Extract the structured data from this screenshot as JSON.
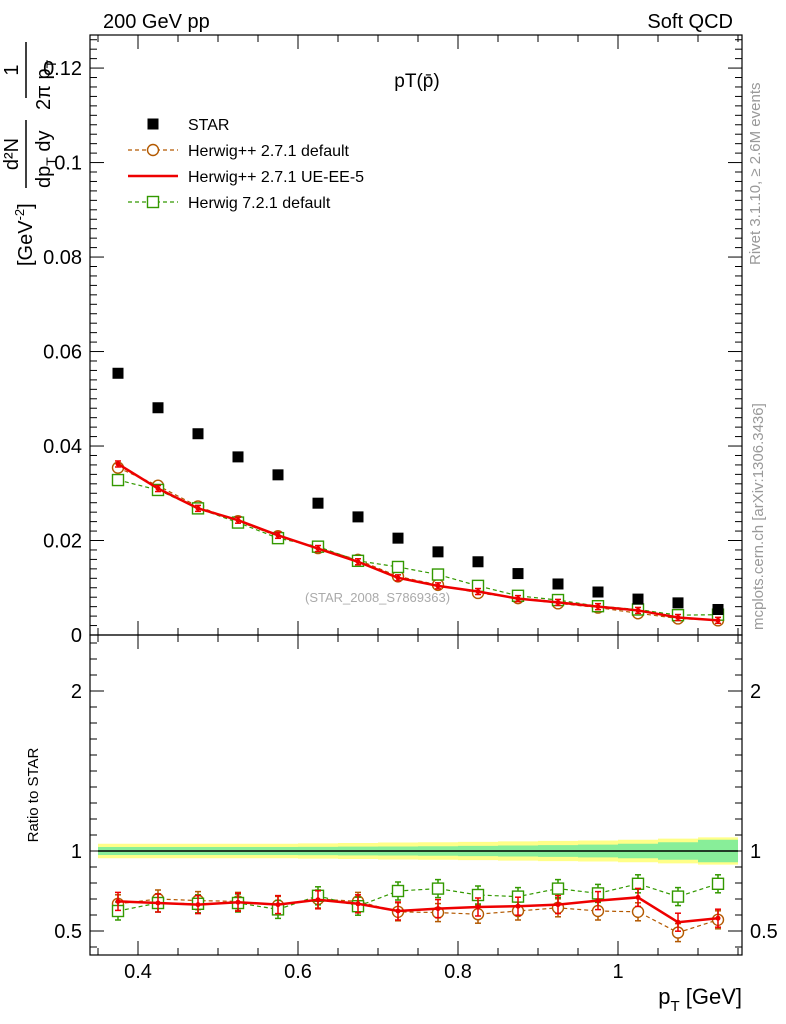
{
  "header": {
    "left": "200 GeV pp",
    "right": "Soft QCD",
    "rivet": "Rivet 3.1.10, ≥ 2.6M events",
    "mcplots": "mcplots.cern.ch [arXiv:1306.3436]",
    "watermark": "(STAR_2008_S7869363)"
  },
  "chart_data": [
    {
      "type": "scatter",
      "panel": "main",
      "title": "pT(p̄)",
      "ylabel": {
        "prefix_num": "1",
        "prefix_den": "2π p",
        "prefix_den_sub": "T",
        "frac_num": "d²N",
        "frac_den_a": "dp",
        "frac_den_sub": "T",
        "frac_den_b": " dy",
        "unit": "[GeV",
        "unit_sup": "-2",
        "unit_close": "]"
      },
      "xlim": [
        0.34,
        1.155
      ],
      "ylim": [
        0,
        0.127
      ],
      "yticks": [
        0,
        0.02,
        0.04,
        0.06,
        0.08,
        0.1,
        0.12
      ],
      "ytick_labels": [
        "0",
        "0.02",
        "0.04",
        "0.06",
        "0.08",
        "0.1",
        "0.12"
      ],
      "grid": false,
      "legend_position": "top-left",
      "x": [
        0.375,
        0.425,
        0.475,
        0.525,
        0.575,
        0.625,
        0.675,
        0.725,
        0.775,
        0.825,
        0.875,
        0.925,
        0.975,
        1.025,
        1.075,
        1.125
      ],
      "series": [
        {
          "name": "STAR",
          "style": "square-marker",
          "color": "#000000",
          "values": [
            0.0554,
            0.0481,
            0.0426,
            0.0377,
            0.0339,
            0.0279,
            0.025,
            0.0205,
            0.0176,
            0.0155,
            0.013,
            0.0108,
            0.0091,
            0.0076,
            0.0068,
            0.0054
          ]
        },
        {
          "name": "Herwig++ 2.7.1 default",
          "style": "dashed-circle",
          "color": "#b35900",
          "values": [
            0.0354,
            0.0316,
            0.0272,
            0.0241,
            0.0209,
            0.0184,
            0.0159,
            0.0124,
            0.0106,
            0.0089,
            0.0078,
            0.0067,
            0.0058,
            0.0046,
            0.0035,
            0.0031
          ]
        },
        {
          "name": "Herwig++ 2.7.1 UE-EE-5",
          "style": "solid-line",
          "color": "#ee0000",
          "values": [
            0.0362,
            0.031,
            0.0268,
            0.0243,
            0.0211,
            0.0183,
            0.0155,
            0.0121,
            0.0104,
            0.0092,
            0.0077,
            0.0069,
            0.006,
            0.0052,
            0.0037,
            0.0031
          ]
        },
        {
          "name": "Herwig 7.2.1 default",
          "style": "dashed-square",
          "color": "#339900",
          "values": [
            0.0328,
            0.0307,
            0.0268,
            0.0238,
            0.0205,
            0.0187,
            0.0157,
            0.0144,
            0.0128,
            0.0104,
            0.0083,
            0.0074,
            0.0061,
            0.0054,
            0.0042,
            0.0043
          ]
        }
      ]
    },
    {
      "type": "line",
      "panel": "ratio",
      "ylabel": "Ratio to STAR",
      "xlabel": "p",
      "xlabel_sub": "T",
      "xlabel_unit": " [GeV]",
      "xlim": [
        0.34,
        1.155
      ],
      "ylim": [
        0.35,
        2.35
      ],
      "xticks": [
        0.4,
        0.6,
        0.8,
        1
      ],
      "xtick_labels": [
        "0.4",
        "0.6",
        "0.8",
        "1"
      ],
      "yticks": [
        0.5,
        1,
        2
      ],
      "ytick_labels": [
        "0.5",
        "1",
        "2"
      ],
      "grid": false,
      "x": [
        0.375,
        0.425,
        0.475,
        0.525,
        0.575,
        0.625,
        0.675,
        0.725,
        0.775,
        0.825,
        0.875,
        0.925,
        0.975,
        1.025,
        1.075,
        1.125
      ],
      "bands": {
        "outer_color": "#ffff88",
        "inner_color": "#88ee99",
        "outer_halfwidth": [
          0.045,
          0.045,
          0.045,
          0.045,
          0.045,
          0.048,
          0.05,
          0.053,
          0.055,
          0.057,
          0.06,
          0.063,
          0.066,
          0.07,
          0.077,
          0.085
        ],
        "inner_halfwidth": [
          0.025,
          0.025,
          0.025,
          0.025,
          0.025,
          0.026,
          0.027,
          0.028,
          0.03,
          0.032,
          0.034,
          0.037,
          0.04,
          0.045,
          0.055,
          0.07
        ]
      },
      "series": [
        {
          "name": "Herwig++ 2.7.1 default",
          "style": "dashed-circle",
          "color": "#b35900",
          "values": [
            0.67,
            0.7,
            0.69,
            0.685,
            0.66,
            0.7,
            0.685,
            0.62,
            0.615,
            0.605,
            0.625,
            0.645,
            0.625,
            0.62,
            0.49,
            0.57
          ]
        },
        {
          "name": "Herwig++ 2.7.1 UE-EE-5",
          "style": "solid-line",
          "color": "#ee0000",
          "values": [
            0.685,
            0.675,
            0.665,
            0.68,
            0.665,
            0.695,
            0.67,
            0.625,
            0.64,
            0.65,
            0.655,
            0.665,
            0.69,
            0.71,
            0.555,
            0.58
          ]
        },
        {
          "name": "Herwig 7.2.1 default",
          "style": "dashed-square",
          "color": "#339900",
          "values": [
            0.625,
            0.675,
            0.67,
            0.675,
            0.635,
            0.72,
            0.655,
            0.75,
            0.765,
            0.725,
            0.715,
            0.765,
            0.735,
            0.795,
            0.715,
            0.795
          ]
        }
      ]
    }
  ]
}
